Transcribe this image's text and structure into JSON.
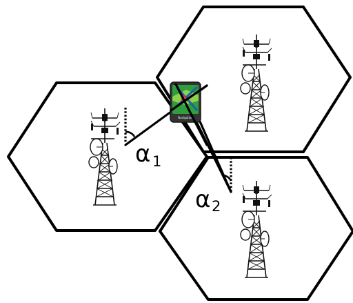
{
  "labels": {
    "alpha1": {
      "symbol": "α",
      "subscript": "1"
    },
    "alpha2": {
      "symbol": "α",
      "subscript": "2"
    }
  },
  "device": {
    "caption": "Navigation",
    "icon": "gps-navigator-icon"
  },
  "towers": [
    "cell-tower-icon",
    "cell-tower-icon",
    "cell-tower-icon"
  ],
  "colors": {
    "stroke": "#000000",
    "device_green": "#2f9e3c",
    "device_frame": "#333333"
  }
}
